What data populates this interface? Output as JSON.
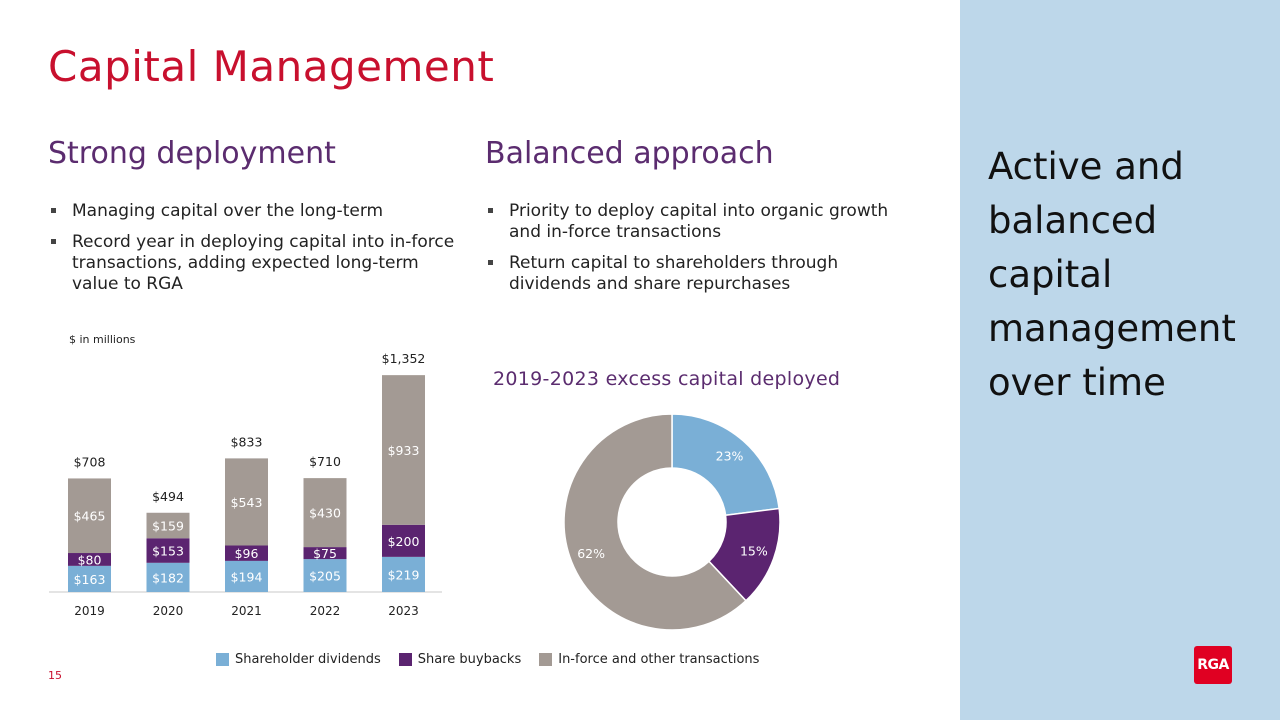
{
  "title": "Capital Management",
  "left": {
    "heading": "Strong deployment",
    "bullets": [
      "Managing capital over the long-term",
      "Record year in deploying capital into in-force transactions, adding expected long-term value to RGA"
    ]
  },
  "middle": {
    "heading": "Balanced approach",
    "bullets": [
      "Priority to deploy capital into organic growth and in-force transactions",
      "Return capital to shareholders through dividends and share repurchases"
    ]
  },
  "sidebar": {
    "text": "Active and balanced capital management over time",
    "logo": "RGA"
  },
  "page_number": "15",
  "units_note": "$ in millions",
  "colors": {
    "dividends": "#7aafd6",
    "buybacks": "#5b2470",
    "inforce": "#a39a94",
    "title": "#c8102e",
    "heading": "#5b2c6f",
    "sidebar": "#bdd7ea"
  },
  "legend": [
    {
      "label": "Shareholder dividends",
      "color": "#7aafd6"
    },
    {
      "label": "Share buybacks",
      "color": "#5b2470"
    },
    {
      "label": "In-force and other transactions",
      "color": "#a39a94"
    }
  ],
  "chart_data": [
    {
      "type": "bar",
      "stacked": true,
      "title": "",
      "xlabel": "",
      "ylabel": "$ in millions",
      "ylim": [
        0,
        1400
      ],
      "categories": [
        "2019",
        "2020",
        "2021",
        "2022",
        "2023"
      ],
      "totals": [
        "$708",
        "$494",
        "$833",
        "$710",
        "$1,352"
      ],
      "series": [
        {
          "name": "Shareholder dividends",
          "values": [
            163,
            182,
            194,
            205,
            219
          ],
          "labels": [
            "$163",
            "$182",
            "$194",
            "$205",
            "$219"
          ]
        },
        {
          "name": "Share buybacks",
          "values": [
            80,
            153,
            96,
            75,
            200
          ],
          "labels": [
            "$80",
            "$153",
            "$96",
            "$75",
            "$200"
          ]
        },
        {
          "name": "In-force and other transactions",
          "values": [
            465,
            159,
            543,
            430,
            933
          ],
          "labels": [
            "$465",
            "$159",
            "$543",
            "$430",
            "$933"
          ]
        }
      ]
    },
    {
      "type": "pie",
      "donut": true,
      "title": "2019-2023 excess capital deployed",
      "labels": [
        "Shareholder dividends",
        "Share buybacks",
        "In-force and other transactions"
      ],
      "values": [
        23,
        15,
        62
      ],
      "value_labels": [
        "23%",
        "15%",
        "62%"
      ]
    }
  ]
}
